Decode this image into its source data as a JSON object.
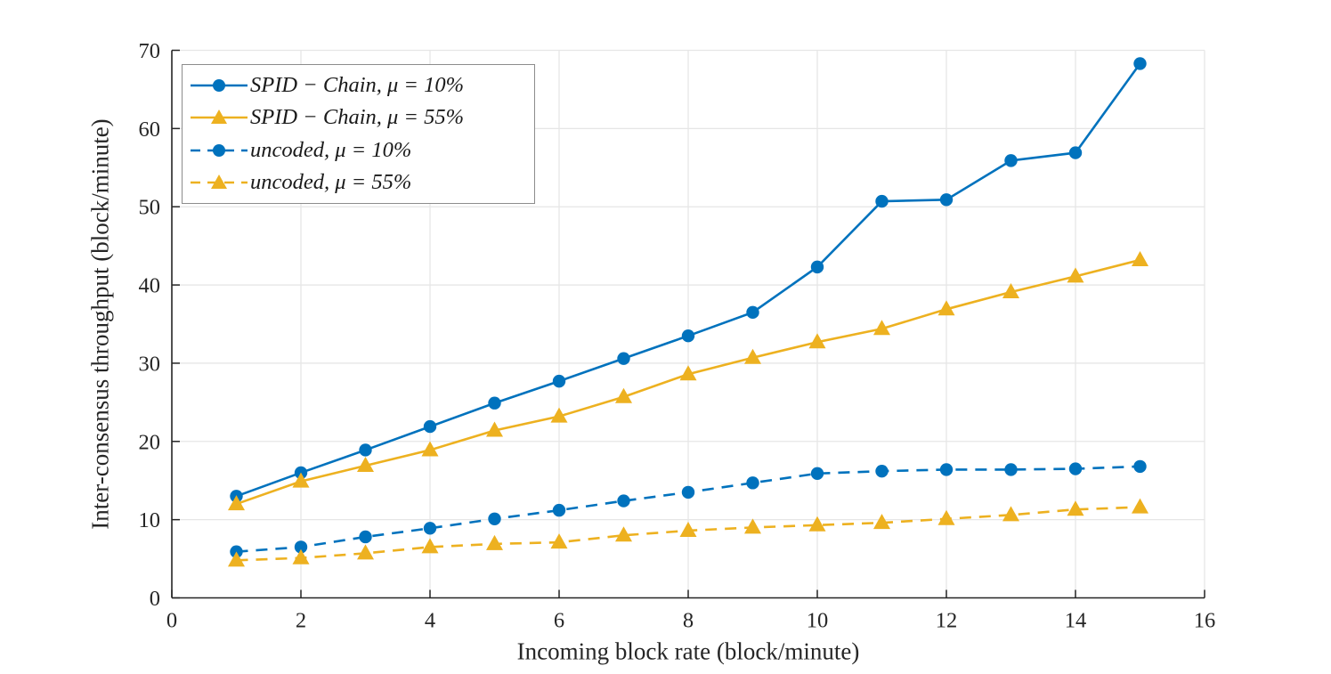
{
  "figure": {
    "background": "#ffffff"
  },
  "chart_data": {
    "type": "line",
    "title": "",
    "xlabel": "Incoming block rate (block/minute)",
    "ylabel": "Inter-consensus throughput (block/minute)",
    "xlim": [
      0,
      16
    ],
    "ylim": [
      0,
      70
    ],
    "xticks": [
      0,
      2,
      4,
      6,
      8,
      10,
      12,
      14,
      16
    ],
    "yticks": [
      0,
      10,
      20,
      30,
      40,
      50,
      60,
      70
    ],
    "grid": true,
    "legend_position": "top-left",
    "x": [
      1,
      2,
      3,
      4,
      5,
      6,
      7,
      8,
      9,
      10,
      11,
      12,
      13,
      14,
      15
    ],
    "series": [
      {
        "name": "SPID − Chain,  μ = 10%",
        "color": "#0072BD",
        "line_style": "solid",
        "marker": "circle",
        "values": [
          13.0,
          16.0,
          18.9,
          21.9,
          24.9,
          27.7,
          30.6,
          33.5,
          36.5,
          42.3,
          50.7,
          50.9,
          55.9,
          56.9,
          68.3
        ]
      },
      {
        "name": "SPID − Chain,  μ = 55%",
        "color": "#EDB120",
        "line_style": "solid",
        "marker": "triangle",
        "values": [
          12.0,
          14.9,
          16.9,
          18.9,
          21.4,
          23.2,
          25.7,
          28.6,
          30.7,
          32.7,
          34.4,
          36.9,
          39.1,
          41.1,
          43.2
        ]
      },
      {
        "name": "uncoded,  μ = 10%",
        "color": "#0072BD",
        "line_style": "dashed",
        "marker": "circle",
        "values": [
          5.9,
          6.5,
          7.8,
          8.9,
          10.1,
          11.2,
          12.4,
          13.5,
          14.7,
          15.9,
          16.2,
          16.4,
          16.4,
          16.5,
          16.8
        ]
      },
      {
        "name": "uncoded,  μ = 55%",
        "color": "#EDB120",
        "line_style": "dashed",
        "marker": "triangle",
        "values": [
          4.8,
          5.1,
          5.7,
          6.5,
          6.9,
          7.1,
          8.0,
          8.6,
          9.0,
          9.3,
          9.6,
          10.1,
          10.6,
          11.3,
          11.6
        ]
      }
    ],
    "style": {
      "grid_color": "#e6e6e6",
      "axis_color": "#262626",
      "tick_label_color": "#262626",
      "legend_border_color": "#8c8c8c"
    }
  }
}
